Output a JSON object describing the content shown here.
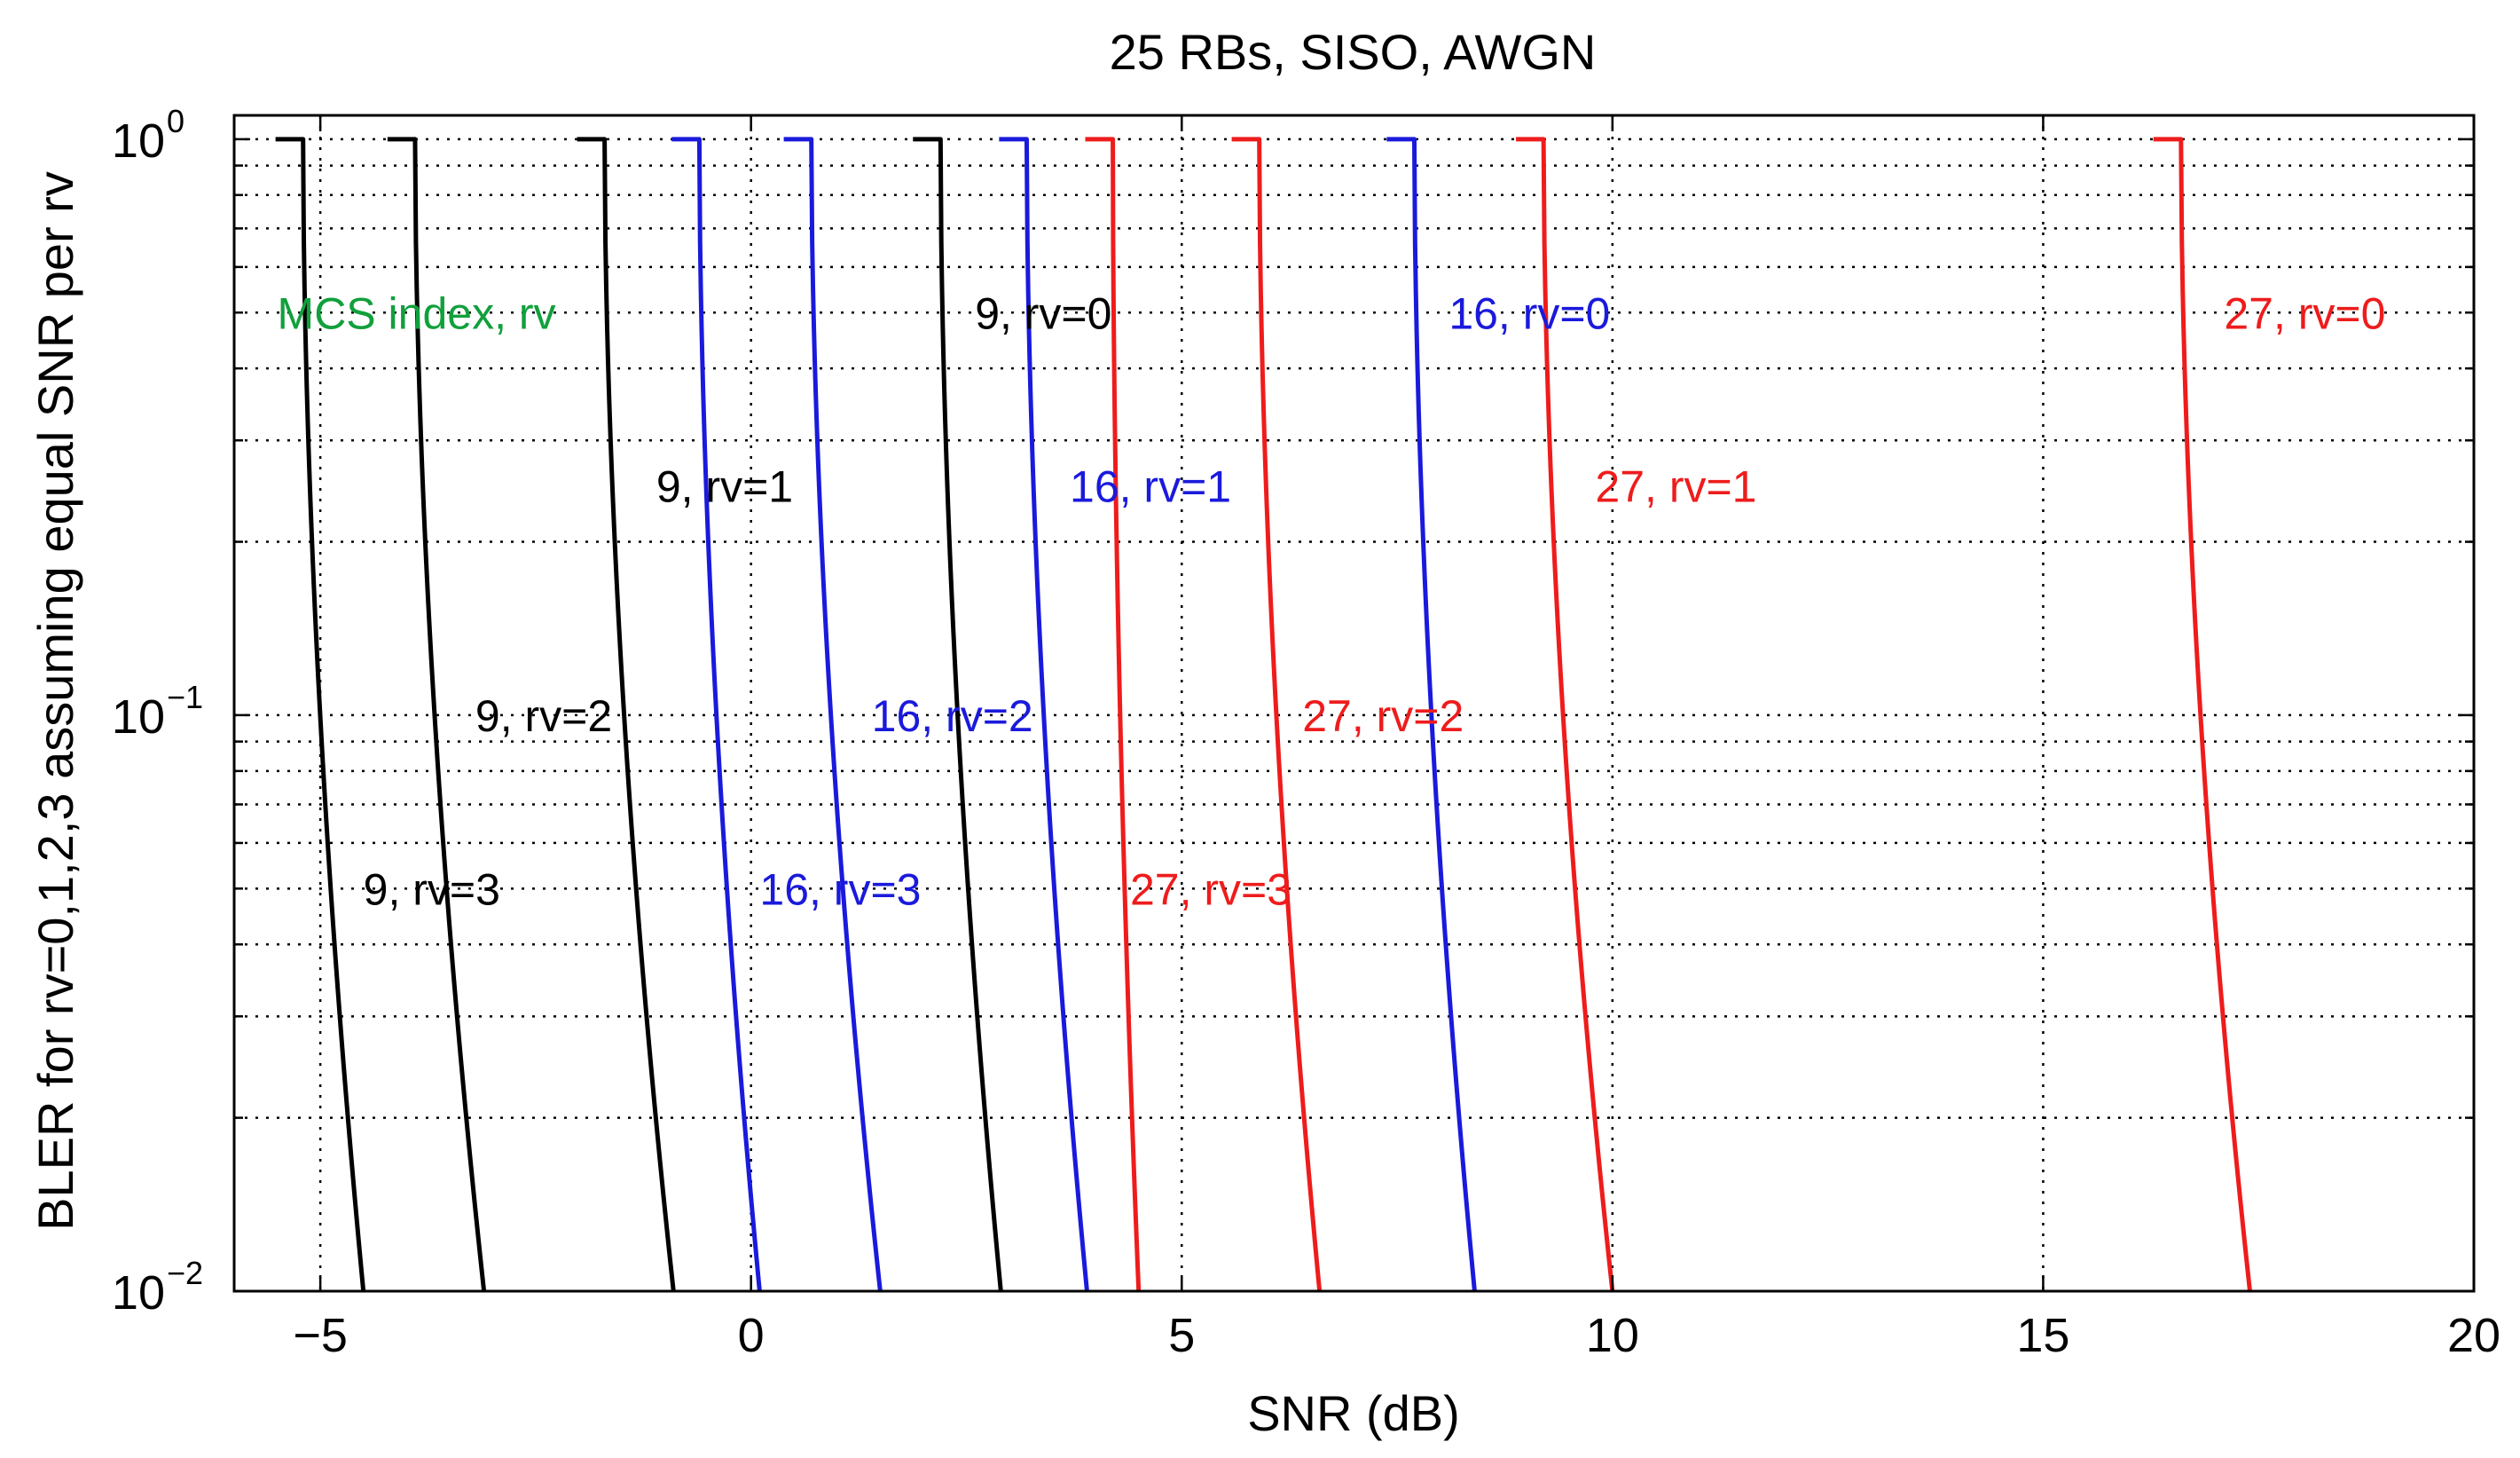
{
  "chart_data": {
    "type": "line",
    "title": "25 RBs, SISO, AWGN",
    "xlabel": "SNR (dB)",
    "ylabel": "BLER for rv=0,1,2,3 assuming equal SNR per rv",
    "xscale": "linear",
    "yscale": "log",
    "xlim": [
      -6,
      20
    ],
    "ylim": [
      0.01,
      1.1
    ],
    "xticks": [
      -5,
      0,
      5,
      10,
      15,
      20
    ],
    "xtick_labels": [
      "−5",
      "0",
      "5",
      "10",
      "15",
      "20"
    ],
    "yticks": [
      {
        "value": 1,
        "base": "10",
        "exp": "0"
      },
      {
        "value": 0.1,
        "base": "10",
        "exp": "−1"
      },
      {
        "value": 0.01,
        "base": "10",
        "exp": "−2"
      }
    ],
    "grid": true,
    "colors": {
      "mcs9": "#000000",
      "mcs16": "#1a1adc",
      "mcs27": "#ee1c1c",
      "legend": "#11a03c"
    },
    "legend_note": {
      "text": "MCS index, rv",
      "color": "#11a03c",
      "x": -5.5,
      "y": 0.5
    },
    "series": [
      {
        "name": "9, rv=0",
        "mcs": 9,
        "rv": 0,
        "color": "#000000",
        "snr_bler1": 2.2,
        "snr_bler001": 2.9,
        "label_x": 2.6,
        "label_y": 0.5
      },
      {
        "name": "9, rv=1",
        "mcs": 9,
        "rv": 1,
        "color": "#000000",
        "snr_bler1": -1.7,
        "snr_bler001": -0.9,
        "label_x": -1.1,
        "label_y": 0.25
      },
      {
        "name": "9, rv=2",
        "mcs": 9,
        "rv": 2,
        "color": "#000000",
        "snr_bler1": -3.9,
        "snr_bler001": -3.1,
        "label_x": -3.2,
        "label_y": 0.1
      },
      {
        "name": "9, rv=3",
        "mcs": 9,
        "rv": 3,
        "color": "#000000",
        "snr_bler1": -5.2,
        "snr_bler001": -4.5,
        "label_x": -4.5,
        "label_y": 0.05
      },
      {
        "name": "16, rv=0",
        "mcs": 16,
        "rv": 0,
        "color": "#1a1adc",
        "snr_bler1": 7.7,
        "snr_bler001": 8.4,
        "label_x": 8.1,
        "label_y": 0.5
      },
      {
        "name": "16, rv=1",
        "mcs": 16,
        "rv": 1,
        "color": "#1a1adc",
        "snr_bler1": 3.2,
        "snr_bler001": 3.9,
        "label_x": 3.7,
        "label_y": 0.25
      },
      {
        "name": "16, rv=2",
        "mcs": 16,
        "rv": 2,
        "color": "#1a1adc",
        "snr_bler1": 0.7,
        "snr_bler001": 1.5,
        "label_x": 1.4,
        "label_y": 0.1
      },
      {
        "name": "16, rv=3",
        "mcs": 16,
        "rv": 3,
        "color": "#1a1adc",
        "snr_bler1": -0.6,
        "snr_bler001": 0.1,
        "label_x": 0.1,
        "label_y": 0.05
      },
      {
        "name": "27, rv=0",
        "mcs": 27,
        "rv": 0,
        "color": "#ee1c1c",
        "snr_bler1": 16.6,
        "snr_bler001": 17.4,
        "label_x": 17.1,
        "label_y": 0.5
      },
      {
        "name": "27, rv=1",
        "mcs": 27,
        "rv": 1,
        "color": "#ee1c1c",
        "snr_bler1": 9.2,
        "snr_bler001": 10.0,
        "label_x": 9.8,
        "label_y": 0.25
      },
      {
        "name": "27, rv=2",
        "mcs": 27,
        "rv": 2,
        "color": "#ee1c1c",
        "snr_bler1": 5.9,
        "snr_bler001": 6.6,
        "label_x": 6.4,
        "label_y": 0.1
      },
      {
        "name": "27, rv=3",
        "mcs": 27,
        "rv": 3,
        "color": "#ee1c1c",
        "snr_bler1": 4.2,
        "snr_bler001": 4.5,
        "label_x": 4.4,
        "label_y": 0.05
      }
    ]
  }
}
